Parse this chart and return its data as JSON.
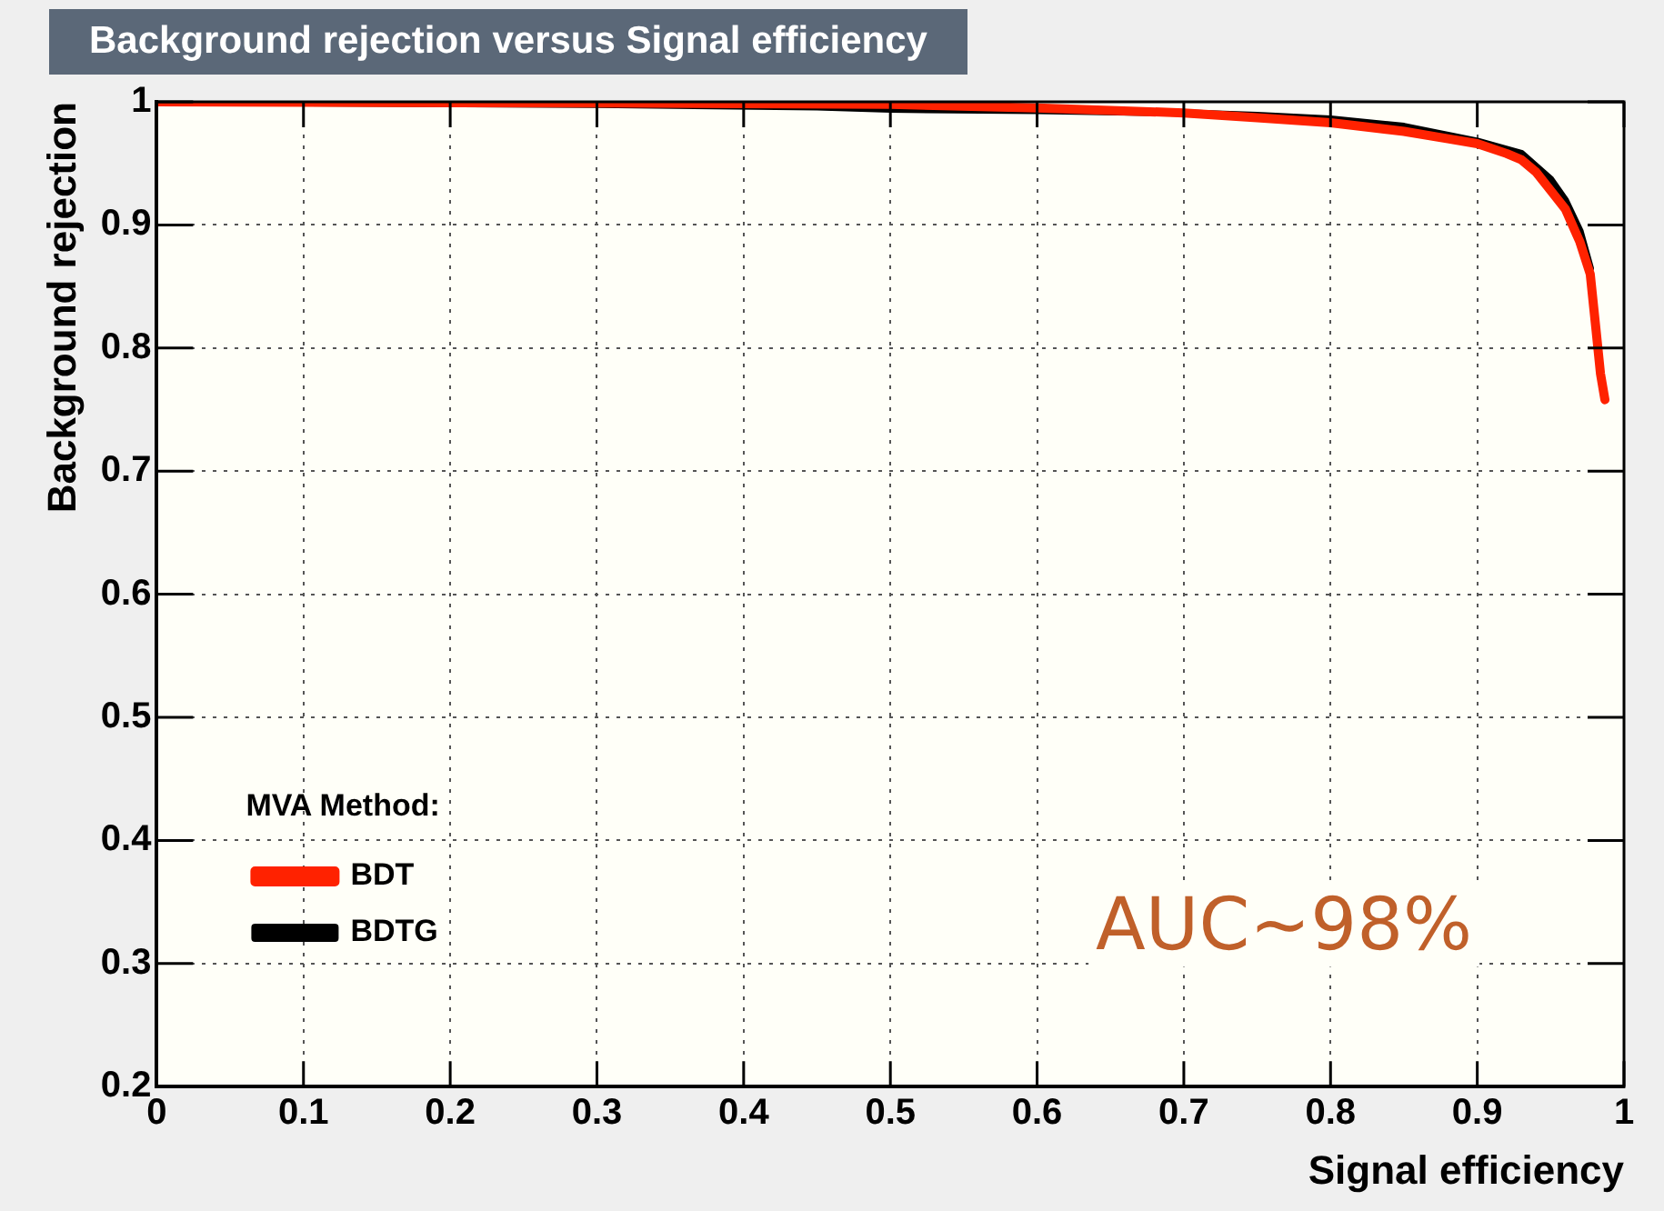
{
  "chart_data": {
    "type": "line",
    "title": "Background rejection versus Signal efficiency",
    "xlabel": "Signal efficiency",
    "ylabel": "Background rejection",
    "legend_title": "MVA Method:",
    "legend": "bottom left",
    "grid": true,
    "marker": "none",
    "line_style": "solid",
    "xlim": [
      0,
      1
    ],
    "xticks": [
      0,
      0.1,
      0.2,
      0.3,
      0.4,
      0.5,
      0.6,
      0.7,
      0.8,
      0.9,
      1
    ],
    "ylim": [
      0.2,
      1
    ],
    "yticks": [
      0.2,
      0.3,
      0.4,
      0.5,
      0.6,
      0.7,
      0.8,
      0.9,
      1
    ],
    "annotations": [
      "AUC~98%"
    ],
    "series": [
      {
        "name": "BDT",
        "color": "#ff2200",
        "x": [
          0,
          0.3,
          0.5,
          0.6,
          0.65,
          0.7,
          0.75,
          0.8,
          0.85,
          0.88,
          0.9,
          0.92,
          0.93,
          0.94,
          0.95,
          0.96,
          0.97,
          0.977,
          0.981,
          0.984,
          0.987
        ],
        "values": [
          1,
          0.999,
          0.998,
          0.995,
          0.993,
          0.991,
          0.987,
          0.983,
          0.976,
          0.97,
          0.966,
          0.958,
          0.953,
          0.943,
          0.928,
          0.913,
          0.886,
          0.86,
          0.814,
          0.779,
          0.758
        ]
      },
      {
        "name": "BDTG",
        "color": "#000000",
        "x": [
          0,
          0.3,
          0.45,
          0.5,
          0.6,
          0.7,
          0.75,
          0.8,
          0.85,
          0.9,
          0.93,
          0.95,
          0.96,
          0.97,
          0.977
        ],
        "values": [
          1,
          0.998,
          0.996,
          0.994,
          0.993,
          0.991,
          0.989,
          0.986,
          0.98,
          0.968,
          0.958,
          0.937,
          0.92,
          0.895,
          0.865
        ]
      }
    ]
  }
}
